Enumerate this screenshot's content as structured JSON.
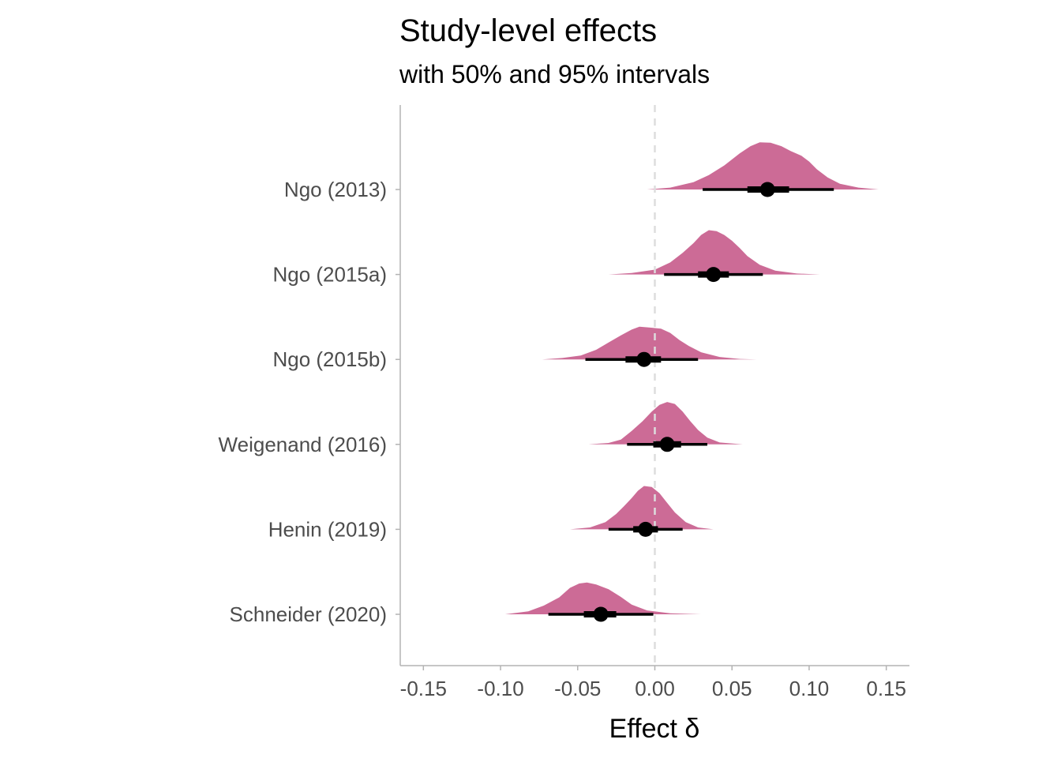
{
  "chart_data": {
    "type": "density-interval",
    "title": "Study-level effects",
    "subtitle": "with 50% and 95% intervals",
    "xlabel": "Effect δ",
    "ylabel": "",
    "xlim": [
      -0.165,
      0.165
    ],
    "xticks": [
      -0.15,
      -0.1,
      -0.05,
      0.0,
      0.05,
      0.1,
      0.15
    ],
    "xtick_labels": [
      "-0.15",
      "-0.10",
      "-0.05",
      "0.00",
      "0.05",
      "0.10",
      "0.15"
    ],
    "reference_line": 0.0,
    "grid": false,
    "legend": "none",
    "colors": {
      "density": "#cc6b96",
      "interval": "#000000",
      "reference": "#dddddd",
      "axis": "#b3b3b3"
    },
    "studies": [
      {
        "name": "Ngo (2013)",
        "median": 0.073,
        "ci50": [
          0.06,
          0.087
        ],
        "ci95": [
          0.031,
          0.116
        ],
        "density": [
          [
            -0.005,
            0.0
          ],
          [
            0.01,
            0.004
          ],
          [
            0.025,
            0.015
          ],
          [
            0.035,
            0.03
          ],
          [
            0.045,
            0.05
          ],
          [
            0.055,
            0.075
          ],
          [
            0.062,
            0.09
          ],
          [
            0.068,
            0.098
          ],
          [
            0.075,
            0.097
          ],
          [
            0.082,
            0.09
          ],
          [
            0.088,
            0.08
          ],
          [
            0.095,
            0.07
          ],
          [
            0.1,
            0.058
          ],
          [
            0.105,
            0.042
          ],
          [
            0.112,
            0.025
          ],
          [
            0.12,
            0.012
          ],
          [
            0.132,
            0.004
          ],
          [
            0.145,
            0.0
          ]
        ]
      },
      {
        "name": "Ngo (2015a)",
        "median": 0.038,
        "ci50": [
          0.028,
          0.048
        ],
        "ci95": [
          0.006,
          0.07
        ],
        "density": [
          [
            -0.03,
            0.0
          ],
          [
            -0.015,
            0.003
          ],
          [
            0.0,
            0.01
          ],
          [
            0.01,
            0.025
          ],
          [
            0.018,
            0.045
          ],
          [
            0.025,
            0.065
          ],
          [
            0.03,
            0.082
          ],
          [
            0.035,
            0.092
          ],
          [
            0.04,
            0.09
          ],
          [
            0.045,
            0.082
          ],
          [
            0.05,
            0.07
          ],
          [
            0.055,
            0.055
          ],
          [
            0.06,
            0.038
          ],
          [
            0.068,
            0.02
          ],
          [
            0.078,
            0.008
          ],
          [
            0.092,
            0.002
          ],
          [
            0.107,
            0.0
          ]
        ]
      },
      {
        "name": "Ngo (2015b)",
        "median": -0.007,
        "ci50": [
          -0.019,
          0.004
        ],
        "ci95": [
          -0.045,
          0.028
        ],
        "density": [
          [
            -0.073,
            0.0
          ],
          [
            -0.06,
            0.003
          ],
          [
            -0.048,
            0.008
          ],
          [
            -0.038,
            0.02
          ],
          [
            -0.03,
            0.035
          ],
          [
            -0.022,
            0.05
          ],
          [
            -0.015,
            0.062
          ],
          [
            -0.01,
            0.068
          ],
          [
            -0.003,
            0.066
          ],
          [
            0.004,
            0.064
          ],
          [
            0.01,
            0.055
          ],
          [
            0.016,
            0.04
          ],
          [
            0.022,
            0.028
          ],
          [
            0.03,
            0.015
          ],
          [
            0.042,
            0.005
          ],
          [
            0.055,
            0.001
          ],
          [
            0.066,
            0.0
          ]
        ]
      },
      {
        "name": "Weigenand (2016)",
        "median": 0.008,
        "ci50": [
          -0.001,
          0.017
        ],
        "ci95": [
          -0.018,
          0.034
        ],
        "density": [
          [
            -0.043,
            0.0
          ],
          [
            -0.03,
            0.003
          ],
          [
            -0.022,
            0.01
          ],
          [
            -0.015,
            0.028
          ],
          [
            -0.008,
            0.048
          ],
          [
            -0.002,
            0.068
          ],
          [
            0.003,
            0.082
          ],
          [
            0.008,
            0.088
          ],
          [
            0.013,
            0.084
          ],
          [
            0.018,
            0.068
          ],
          [
            0.023,
            0.048
          ],
          [
            0.028,
            0.03
          ],
          [
            0.034,
            0.014
          ],
          [
            0.042,
            0.004
          ],
          [
            0.057,
            0.0
          ]
        ]
      },
      {
        "name": "Henin (2019)",
        "median": -0.006,
        "ci50": [
          -0.014,
          0.002
        ],
        "ci95": [
          -0.03,
          0.018
        ],
        "density": [
          [
            -0.055,
            0.0
          ],
          [
            -0.042,
            0.004
          ],
          [
            -0.032,
            0.015
          ],
          [
            -0.025,
            0.032
          ],
          [
            -0.02,
            0.048
          ],
          [
            -0.015,
            0.065
          ],
          [
            -0.011,
            0.08
          ],
          [
            -0.007,
            0.09
          ],
          [
            -0.002,
            0.088
          ],
          [
            0.003,
            0.075
          ],
          [
            0.008,
            0.055
          ],
          [
            0.013,
            0.035
          ],
          [
            0.02,
            0.015
          ],
          [
            0.028,
            0.004
          ],
          [
            0.038,
            0.0
          ]
        ]
      },
      {
        "name": "Schneider (2020)",
        "median": -0.035,
        "ci50": [
          -0.046,
          -0.025
        ],
        "ci95": [
          -0.069,
          -0.001
        ],
        "density": [
          [
            -0.097,
            0.0
          ],
          [
            -0.082,
            0.006
          ],
          [
            -0.072,
            0.018
          ],
          [
            -0.062,
            0.035
          ],
          [
            -0.055,
            0.055
          ],
          [
            -0.049,
            0.064
          ],
          [
            -0.044,
            0.066
          ],
          [
            -0.038,
            0.062
          ],
          [
            -0.03,
            0.052
          ],
          [
            -0.022,
            0.036
          ],
          [
            -0.015,
            0.02
          ],
          [
            -0.005,
            0.008
          ],
          [
            0.01,
            0.002
          ],
          [
            0.03,
            0.0
          ]
        ]
      }
    ]
  }
}
